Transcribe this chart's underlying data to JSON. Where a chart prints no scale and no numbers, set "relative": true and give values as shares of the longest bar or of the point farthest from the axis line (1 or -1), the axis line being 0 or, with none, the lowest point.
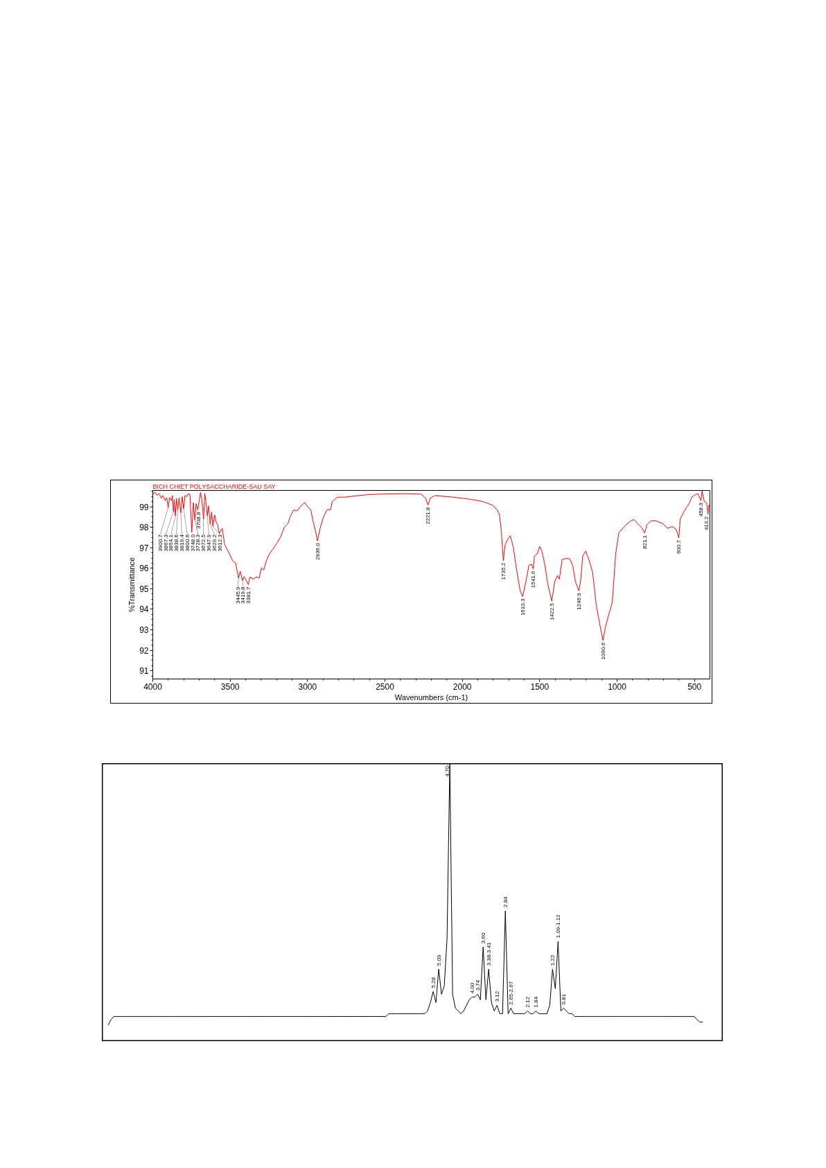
{
  "chart_data": [
    {
      "type": "line",
      "xlabel": "Wavenumbers (cm-1)",
      "ylabel": "%Transmittance",
      "xlim": [
        4000,
        400
      ],
      "ylim": [
        90.6,
        99.8
      ],
      "xticks": [
        4000,
        {
          "value": 3900,
          "label": null
        },
        {
          "value": 3800,
          "label": null
        },
        {
          "value": 3700,
          "label": null
        },
        {
          "value": 3600,
          "label": null
        },
        3500,
        {
          "value": 3400,
          "label": null
        },
        {
          "value": 3300,
          "label": null
        },
        {
          "value": 3200,
          "label": null
        },
        {
          "value": 3100,
          "label": null
        },
        3000,
        {
          "value": 2900,
          "label": null
        },
        {
          "value": 2800,
          "label": null
        },
        {
          "value": 2700,
          "label": null
        },
        {
          "value": 2600,
          "label": null
        },
        2500,
        {
          "value": 2400,
          "label": null
        },
        {
          "value": 2300,
          "label": null
        },
        {
          "value": 2200,
          "label": null
        },
        {
          "value": 2100,
          "label": null
        },
        2000,
        {
          "value": 1900,
          "label": null
        },
        {
          "value": 1800,
          "label": null
        },
        {
          "value": 1700,
          "label": null
        },
        {
          "value": 1600,
          "label": null
        },
        1500,
        {
          "value": 1400,
          "label": null
        },
        {
          "value": 1300,
          "label": null
        },
        {
          "value": 1200,
          "label": null
        },
        {
          "value": 1100,
          "label": null
        },
        1000,
        {
          "value": 900,
          "label": null
        },
        {
          "value": 800,
          "label": null
        },
        {
          "value": 700,
          "label": null
        },
        {
          "value": 600,
          "label": null
        },
        500
      ],
      "yticks": [
        {
          "value": 90.75,
          "label": null
        },
        91,
        {
          "value": 91.25,
          "label": null
        },
        {
          "value": 91.5,
          "label": null
        },
        {
          "value": 91.75,
          "label": null
        },
        92,
        {
          "value": 92.25,
          "label": null
        },
        {
          "value": 92.5,
          "label": null
        },
        {
          "value": 92.75,
          "label": null
        },
        93,
        {
          "value": 93.25,
          "label": null
        },
        {
          "value": 93.5,
          "label": null
        },
        {
          "value": 93.75,
          "label": null
        },
        94,
        {
          "value": 94.25,
          "label": null
        },
        {
          "value": 94.5,
          "label": null
        },
        {
          "value": 94.75,
          "label": null
        },
        95,
        {
          "value": 95.25,
          "label": null
        },
        {
          "value": 95.5,
          "label": null
        },
        {
          "value": 95.75,
          "label": null
        },
        96,
        {
          "value": 96.25,
          "label": null
        },
        {
          "value": 96.5,
          "label": null
        },
        {
          "value": 96.75,
          "label": null
        },
        97,
        {
          "value": 97.25,
          "label": null
        },
        {
          "value": 97.5,
          "label": null
        },
        {
          "value": 97.75,
          "label": null
        },
        98,
        {
          "value": 98.25,
          "label": null
        },
        {
          "value": 98.5,
          "label": null
        },
        {
          "value": 98.75,
          "label": null
        },
        99,
        {
          "value": 99.25,
          "label": null
        },
        {
          "value": 99.5,
          "label": null
        },
        {
          "value": 99.75,
          "label": null
        }
      ],
      "series": [
        {
          "name": "BICH CHIET POLYSACCHARIDE-SAU SAY",
          "color": "#ff0000",
          "x": [
            4000,
            3985,
            3972,
            3960,
            3945,
            3935,
            3920,
            3910,
            3901,
            3892,
            3880,
            3873,
            3867,
            3861,
            3854,
            3847,
            3839,
            3830,
            3819,
            3810,
            3801,
            3792,
            3780,
            3770,
            3760,
            3748,
            3738,
            3728,
            3720,
            3709,
            3700,
            3692,
            3684,
            3672,
            3664,
            3656,
            3648,
            3640,
            3629,
            3620,
            3612,
            3600,
            3590,
            3580,
            3570,
            3560,
            3551,
            3536,
            3509,
            3484,
            3465,
            3446,
            3435,
            3420,
            3410,
            3382,
            3373,
            3350,
            3331,
            3313,
            3298,
            3283,
            3266,
            3246,
            3224,
            3194,
            3172,
            3150,
            3127,
            3113,
            3090,
            3068,
            3046,
            3019,
            3001,
            2979,
            2964,
            2949,
            2936,
            2919,
            2897,
            2875,
            2852,
            2840,
            2808,
            2763,
            2689,
            2615,
            2540,
            2392,
            2356,
            2266,
            2237,
            2222,
            2207,
            2177,
            2058,
            1939,
            1865,
            1805,
            1775,
            1760,
            1748,
            1735,
            1723,
            1708,
            1690,
            1671,
            1649,
            1626,
            1610,
            1589,
            1570,
            1552,
            1542,
            1534,
            1515,
            1500,
            1485,
            1466,
            1448,
            1422,
            1403,
            1385,
            1373,
            1355,
            1329,
            1306,
            1287,
            1269,
            1247,
            1236,
            1222,
            1202,
            1180,
            1158,
            1135,
            1113,
            1091,
            1076,
            1053,
            1031,
            1009,
            989,
            971,
            942,
            912,
            890,
            867,
            837,
            821,
            808,
            781,
            748,
            704,
            674,
            644,
            617,
            601,
            592,
            570,
            547,
            532,
            517,
            495,
            477,
            458,
            451,
            436,
            421,
            413,
            406,
            400
          ],
          "values": [
            99.62,
            99.7,
            99.55,
            99.65,
            99.42,
            99.55,
            99.3,
            99.45,
            98.95,
            99.45,
            99.3,
            99.55,
            98.75,
            99.35,
            98.55,
            99.4,
            98.85,
            99.45,
            98.7,
            99.5,
            98.9,
            99.55,
            99.5,
            99.65,
            99.6,
            97.75,
            99.2,
            98.35,
            99.15,
            98.85,
            99.3,
            99.7,
            99.4,
            98.4,
            99.65,
            99.2,
            98.55,
            99.05,
            98.15,
            98.75,
            98.05,
            98.6,
            98.25,
            98.1,
            97.7,
            97.85,
            97.95,
            97.16,
            96.77,
            96.37,
            96.26,
            95.52,
            95.86,
            95.4,
            95.6,
            95.2,
            95.58,
            95.47,
            95.58,
            95.52,
            96.03,
            95.92,
            96.37,
            96.71,
            96.93,
            97.27,
            97.56,
            98.01,
            98.18,
            98.51,
            98.85,
            98.8,
            99.02,
            99.21,
            99.02,
            98.85,
            98.29,
            97.84,
            97.33,
            97.95,
            98.51,
            98.85,
            98.85,
            99.25,
            99.47,
            99.47,
            99.53,
            99.59,
            99.62,
            99.64,
            99.64,
            99.62,
            99.42,
            99.08,
            99.42,
            99.55,
            99.47,
            99.36,
            99.25,
            99.08,
            98.85,
            98.63,
            97.84,
            96.37,
            97.16,
            97.39,
            97.59,
            97.05,
            95.92,
            94.9,
            94.62,
            95.35,
            96.14,
            96.2,
            95.97,
            96.6,
            96.71,
            97.07,
            96.82,
            96.14,
            95.24,
            94.4,
            95.35,
            95.64,
            95.47,
            96.43,
            96.48,
            96.46,
            96.14,
            95.35,
            94.9,
            95.35,
            96.6,
            96.84,
            96.37,
            95.81,
            94.23,
            93.32,
            92.48,
            93.1,
            93.77,
            94.34,
            96.71,
            97.72,
            97.89,
            98.12,
            98.31,
            98.38,
            98.18,
            97.95,
            97.72,
            98.12,
            98.31,
            98.31,
            98.18,
            97.95,
            98.04,
            97.89,
            97.48,
            98.4,
            98.74,
            99.02,
            99.19,
            99.47,
            99.59,
            99.64,
            99.3,
            99.78,
            99.25,
            99.19,
            98.63,
            99.08,
            99.0
          ]
        }
      ],
      "annotations": [
        {
          "text": "3900.7",
          "x": 3900.7,
          "y": 98.95
        },
        {
          "text": "3867.3",
          "x": 3867.3,
          "y": 98.75
        },
        {
          "text": "3854.1",
          "x": 3854.1,
          "y": 98.55
        },
        {
          "text": "3838.6",
          "x": 3838.6,
          "y": 98.85
        },
        {
          "text": "3819.4",
          "x": 3819.4,
          "y": 98.7
        },
        {
          "text": "3800.6",
          "x": 3800.6,
          "y": 98.9
        },
        {
          "text": "3748.0",
          "x": 3748.0,
          "y": 97.75
        },
        {
          "text": "3728.3",
          "x": 3728.3,
          "y": 98.35
        },
        {
          "text": "3708.8",
          "x": 3708.8,
          "y": 98.85
        },
        {
          "text": "3672.5",
          "x": 3672.5,
          "y": 98.4
        },
        {
          "text": "3647.9",
          "x": 3647.9,
          "y": 98.55
        },
        {
          "text": "3629.2",
          "x": 3629.2,
          "y": 98.15
        },
        {
          "text": "3612.3",
          "x": 3612.3,
          "y": 98.05
        },
        {
          "text": "3445.9",
          "x": 3445.9,
          "y": 95.52
        },
        {
          "text": "3419.8",
          "x": 3419.8,
          "y": 95.4
        },
        {
          "text": "3381.7",
          "x": 3381.7,
          "y": 95.2
        },
        {
          "text": "2936.0",
          "x": 2936.0,
          "y": 97.33
        },
        {
          "text": "2221.8",
          "x": 2221.8,
          "y": 99.08
        },
        {
          "text": "1735.2",
          "x": 1735.2,
          "y": 96.37
        },
        {
          "text": "1610.3",
          "x": 1610.3,
          "y": 94.62
        },
        {
          "text": "1541.6",
          "x": 1541.6,
          "y": 95.97
        },
        {
          "text": "1422.5",
          "x": 1422.5,
          "y": 94.4
        },
        {
          "text": "1246.9",
          "x": 1246.9,
          "y": 94.9
        },
        {
          "text": "1090.6",
          "x": 1090.6,
          "y": 92.48
        },
        {
          "text": "821.1",
          "x": 821.1,
          "y": 97.72
        },
        {
          "text": "600.7",
          "x": 600.7,
          "y": 97.48
        },
        {
          "text": "458.3",
          "x": 458.3,
          "y": 99.3
        },
        {
          "text": "413.2",
          "x": 413.2,
          "y": 98.63
        }
      ]
    },
    {
      "type": "line",
      "relative": true,
      "color": "#000000",
      "categories": [
        null,
        null,
        null,
        null,
        null,
        null,
        null,
        null,
        null,
        null,
        null,
        null,
        null,
        null,
        null,
        null,
        null,
        null,
        null,
        null,
        null,
        null,
        null,
        null,
        null,
        null,
        null,
        null,
        null,
        null,
        null,
        null,
        null,
        null,
        null,
        null,
        null,
        null,
        null,
        null,
        null,
        null,
        null,
        null,
        null,
        null,
        null,
        null,
        null,
        null,
        null,
        null,
        null,
        null,
        null,
        null,
        null,
        null,
        null,
        null,
        null,
        null,
        null,
        null,
        null,
        null,
        null,
        null,
        null,
        null,
        null,
        null,
        null,
        null,
        null,
        null,
        null,
        null,
        null,
        null,
        null,
        null,
        null,
        null,
        null,
        null,
        null,
        null,
        null,
        null,
        null,
        null,
        null,
        null,
        null,
        null,
        null,
        null,
        null,
        null,
        null,
        null,
        null,
        null,
        null,
        null,
        null,
        null,
        null,
        null,
        null,
        null,
        null,
        null,
        null,
        null,
        null,
        null,
        null,
        null,
        null,
        null,
        null,
        null,
        null,
        null,
        null,
        null,
        null,
        null,
        null,
        null,
        null,
        null,
        null,
        null,
        null,
        null,
        null,
        null,
        null,
        null,
        null,
        null,
        null,
        null,
        null,
        null,
        null,
        null,
        null,
        null,
        null,
        null,
        null,
        null,
        null,
        null,
        null,
        null,
        null,
        null,
        null,
        null,
        null,
        null,
        null,
        null,
        null,
        null,
        null,
        null,
        null,
        null,
        null,
        null,
        null,
        null,
        null,
        null,
        null,
        null,
        null,
        null,
        null,
        null,
        null,
        null,
        null,
        null,
        null,
        null,
        null,
        null,
        null,
        null,
        null,
        null,
        null,
        null,
        null,
        null,
        null,
        null,
        null,
        null,
        null,
        null,
        null,
        null,
        null,
        null,
        null,
        null,
        null
      ],
      "values": [
        0.06,
        0.08,
        0.09,
        0.09,
        0.09,
        0.09,
        0.09,
        0.09,
        0.09,
        0.09,
        0.09,
        0.09,
        0.09,
        0.09,
        0.09,
        0.09,
        0.09,
        0.09,
        0.09,
        0.09,
        0.09,
        0.09,
        0.09,
        0.09,
        0.09,
        0.09,
        0.09,
        0.09,
        0.09,
        0.09,
        0.09,
        0.09,
        0.09,
        0.09,
        0.09,
        0.09,
        0.09,
        0.09,
        0.09,
        0.09,
        0.09,
        0.09,
        0.09,
        0.09,
        0.09,
        0.09,
        0.09,
        0.09,
        0.09,
        0.09,
        0.09,
        0.09,
        0.09,
        0.09,
        0.09,
        0.09,
        0.09,
        0.09,
        0.09,
        0.09,
        0.09,
        0.09,
        0.09,
        0.09,
        0.09,
        0.09,
        0.09,
        0.09,
        0.09,
        0.09,
        0.09,
        0.09,
        0.09,
        0.09,
        0.09,
        0.09,
        0.09,
        0.09,
        0.09,
        0.09,
        0.09,
        0.09,
        0.09,
        0.09,
        0.09,
        0.09,
        0.09,
        0.09,
        0.09,
        0.09,
        0.09,
        0.09,
        0.09,
        0.09,
        0.09,
        0.09,
        0.09,
        0.09,
        0.09,
        0.09,
        0.09,
        0.1,
        0.1,
        0.1,
        0.1,
        0.1,
        0.1,
        0.1,
        0.1,
        0.1,
        0.1,
        0.1,
        0.1,
        0.1,
        0.1,
        0.11,
        0.14,
        0.18,
        0.14,
        0.26,
        0.17,
        0.2,
        0.37,
        1,
        0.17,
        0.12,
        0.11,
        0.1,
        0.11,
        0.13,
        0.15,
        0.16,
        0.16,
        0.17,
        0.15,
        0.34,
        0.15,
        0.26,
        0.14,
        0.11,
        0.13,
        0.1,
        0.1,
        0.47,
        0.1,
        0.12,
        0.1,
        0.1,
        0.1,
        0.1,
        0.1,
        0.11,
        0.1,
        0.1,
        0.11,
        0.1,
        0.1,
        0.1,
        0.1,
        0.13,
        0.26,
        0.19,
        0.36,
        0.11,
        0.12,
        0.11,
        0.1,
        0.1,
        0.09,
        0.09,
        0.09,
        0.09,
        0.09,
        0.09,
        0.09,
        0.09,
        0.09,
        0.09,
        0.09,
        0.09,
        0.09,
        0.09,
        0.09,
        0.09,
        0.09,
        0.09,
        0.09,
        0.09,
        0.09,
        0.09,
        0.09,
        0.09,
        0.09,
        0.09,
        0.09,
        0.09,
        0.09,
        0.09,
        0.09,
        0.09,
        0.09,
        0.09,
        0.09,
        0.09,
        0.09,
        0.09,
        0.09,
        0.09,
        0.09,
        0.09,
        0.09,
        0.09,
        0.08,
        0.07,
        0.07
      ],
      "annotations": [
        {
          "text": "5.28",
          "y": 0.18
        },
        {
          "text": "5.09",
          "y": 0.26
        },
        {
          "text": "4.70",
          "y": 1
        },
        {
          "text": "4.00",
          "y": 0.16
        },
        {
          "text": "3.74",
          "y": 0.17
        },
        {
          "text": "3.60",
          "y": 0.34
        },
        {
          "text": "3.38-3.41",
          "y": 0.26
        },
        {
          "text": "3.12",
          "y": 0.13
        },
        {
          "text": "2.84",
          "y": 0.47
        },
        {
          "text": "2.65-2.67",
          "y": 0.12
        },
        {
          "text": "2.12",
          "y": 0.11
        },
        {
          "text": "1.84",
          "y": 0.11
        },
        {
          "text": "1.22",
          "y": 0.26
        },
        {
          "text": "1.09-1.12",
          "y": 0.36
        },
        {
          "text": "0.81",
          "y": 0.12
        }
      ]
    }
  ]
}
